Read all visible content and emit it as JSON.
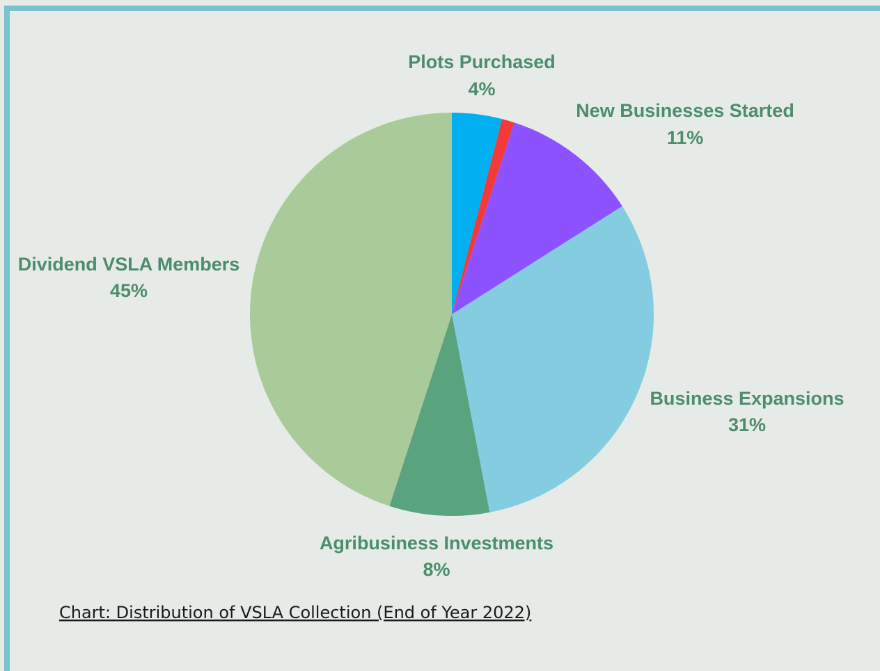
{
  "chart_data": {
    "type": "pie",
    "title": "Chart: Distribution of VSLA Collection (End of Year 2022)",
    "categories": [
      "Plots Purchased",
      null,
      "New Businesses Started",
      "Business Expansions",
      "Agribusiness Investments",
      "Dividend VSLA Members"
    ],
    "values": [
      4,
      1,
      11,
      31,
      8,
      45
    ],
    "value_labels": [
      "4%",
      null,
      "11%",
      "31%",
      "8%",
      "45%"
    ],
    "colors": [
      "#00b0f0",
      "#f23a3a",
      "#8c52ff",
      "#84cde0",
      "#5aa37f",
      "#a9cb99"
    ]
  }
}
